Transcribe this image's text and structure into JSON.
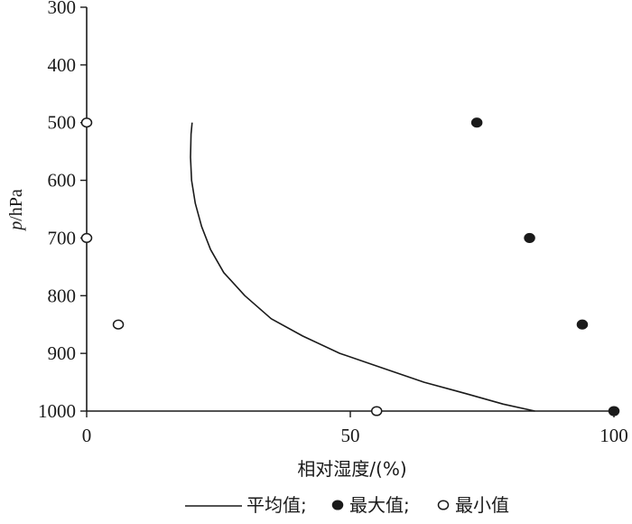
{
  "chart_data": {
    "type": "line",
    "title": "",
    "xlabel": "相对湿度/(%)",
    "ylabel": "p/hPa",
    "ylabel_italic": "p",
    "ylabel_rest": "/hPa",
    "xlim": [
      0,
      100
    ],
    "ylim": [
      300,
      1000
    ],
    "y_reversed": true,
    "x_ticks": [
      0,
      50,
      100
    ],
    "y_ticks": [
      300,
      400,
      500,
      600,
      700,
      800,
      900,
      1000
    ],
    "grid": false,
    "legend_position": "bottom",
    "series": [
      {
        "name": "平均值",
        "style": "line",
        "color": "#1a1a1a",
        "points": [
          [
            20.0,
            500
          ],
          [
            19.8,
            520
          ],
          [
            19.7,
            560
          ],
          [
            19.9,
            600
          ],
          [
            20.6,
            640
          ],
          [
            21.8,
            680
          ],
          [
            23.5,
            720
          ],
          [
            26.0,
            760
          ],
          [
            30.0,
            800
          ],
          [
            35.0,
            840
          ],
          [
            41.0,
            870
          ],
          [
            48.0,
            900
          ],
          [
            56.0,
            925
          ],
          [
            64.0,
            950
          ],
          [
            72.0,
            970
          ],
          [
            79.0,
            988
          ],
          [
            85.0,
            1000
          ]
        ]
      },
      {
        "name": "最大值",
        "style": "filled-circle",
        "color": "#1a1a1a",
        "points": [
          [
            74,
            500
          ],
          [
            84,
            700
          ],
          [
            94,
            850
          ],
          [
            100,
            1000
          ]
        ]
      },
      {
        "name": "最小值",
        "style": "open-circle",
        "color": "#1a1a1a",
        "points": [
          [
            0,
            500
          ],
          [
            0,
            700
          ],
          [
            6,
            850
          ],
          [
            55,
            1000
          ]
        ]
      }
    ],
    "legend_items": [
      {
        "label": "平均值;",
        "marker": "line"
      },
      {
        "label": "最大值;",
        "marker": "filled-circle"
      },
      {
        "label": "最小值",
        "marker": "open-circle"
      }
    ]
  }
}
